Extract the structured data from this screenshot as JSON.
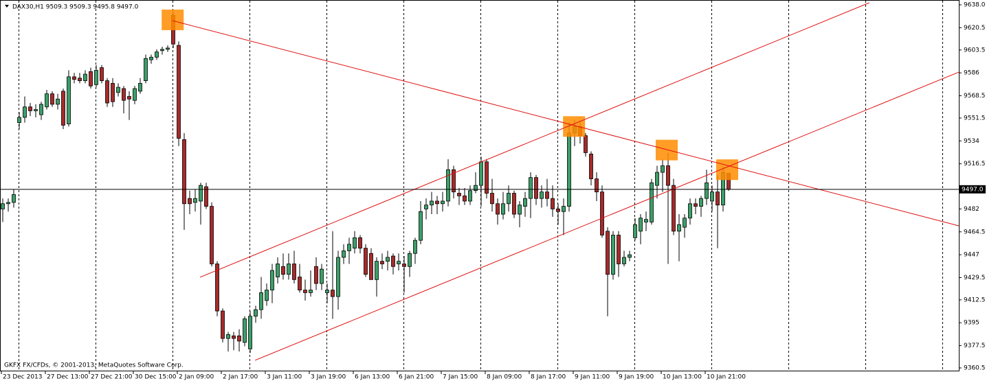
{
  "chart_data": {
    "type": "candlestick",
    "title": "DAX30,H1  9509.3 9509.3 9495.8 9497.0",
    "footer": "GKFX FX/CFDs, © 2001-2013, MetaQuotes Software Corp.",
    "up_color": "#3c9f68",
    "down_color": "#a82a2a",
    "line_color": "#e01010",
    "highlight_color": "#ff8c00",
    "open": [
      9482,
      9486,
      9487,
      9548,
      9552,
      9560,
      9557,
      9554,
      9560,
      9570,
      9562,
      9572,
      9547,
      9583,
      9582,
      9580,
      9587,
      9577,
      9590,
      9580,
      9578,
      9571,
      9574,
      9568,
      9565,
      9572,
      9580,
      9596,
      9598,
      9603,
      9604,
      9630,
      9607,
      9535,
      9490,
      9487,
      9488,
      9499,
      9484,
      9440,
      9404,
      9383,
      9385,
      9385,
      9380,
      9375,
      9400,
      9405,
      9412,
      9420,
      9430,
      9438,
      9432,
      9440,
      9430,
      9420,
      9418,
      9438,
      9425,
      9418,
      9420,
      9415,
      9445,
      9450,
      9452,
      9460,
      9452,
      9448,
      9428,
      9442,
      9442,
      9446,
      9440,
      9440,
      9438,
      9448,
      9458,
      9482,
      9485,
      9488,
      9486,
      9488,
      9512,
      9494,
      9492,
      9488,
      9496,
      9500,
      9518,
      9494,
      9486,
      9478,
      9486,
      9494,
      9478,
      9484,
      9490,
      9506,
      9490,
      9495,
      9490,
      9482,
      9480,
      9484,
      9540,
      9545,
      9538,
      9524,
      9505,
      9495,
      9465,
      9432,
      9462,
      9440,
      9445,
      9460,
      9465,
      9472,
      9472,
      9500,
      9510,
      9515,
      9500,
      9465,
      9468,
      9475,
      9486,
      9484,
      9490,
      9488,
      9495,
      9485,
      9509.3
    ],
    "high": [
      9490,
      9490,
      9497,
      9556,
      9568,
      9563,
      9562,
      9564,
      9573,
      9572,
      9570,
      9574,
      9588,
      9586,
      9586,
      9588,
      9590,
      9592,
      9592,
      9582,
      9582,
      9578,
      9576,
      9572,
      9576,
      9582,
      9600,
      9600,
      9604,
      9606,
      9607,
      9633,
      9610,
      9540,
      9496,
      9497,
      9502,
      9502,
      9487,
      9442,
      9406,
      9388,
      9388,
      9390,
      9400,
      9404,
      9408,
      9430,
      9425,
      9440,
      9445,
      9448,
      9448,
      9450,
      9440,
      9428,
      9435,
      9445,
      9440,
      9425,
      9465,
      9450,
      9455,
      9460,
      9465,
      9462,
      9455,
      9452,
      9445,
      9448,
      9450,
      9448,
      9448,
      9446,
      9450,
      9460,
      9488,
      9490,
      9495,
      9492,
      9495,
      9520,
      9515,
      9498,
      9498,
      9500,
      9510,
      9522,
      9520,
      9505,
      9490,
      9495,
      9500,
      9496,
      9488,
      9495,
      9510,
      9508,
      9500,
      9505,
      9500,
      9486,
      9490,
      9548,
      9550,
      9548,
      9540,
      9526,
      9510,
      9500,
      9468,
      9465,
      9465,
      9450,
      9450,
      9475,
      9478,
      9480,
      9505,
      9515,
      9520,
      9525,
      9505,
      9478,
      9478,
      9490,
      9490,
      9492,
      9512,
      9500,
      9508,
      9514,
      9509.3
    ],
    "low": [
      9472,
      9480,
      9483,
      9543,
      9548,
      9553,
      9552,
      9550,
      9558,
      9560,
      9558,
      9543,
      9545,
      9578,
      9578,
      9578,
      9574,
      9575,
      9578,
      9560,
      9560,
      9568,
      9555,
      9550,
      9562,
      9570,
      9578,
      9593,
      9596,
      9600,
      9602,
      9605,
      9530,
      9466,
      9478,
      9480,
      9470,
      9482,
      9438,
      9400,
      9380,
      9373,
      9374,
      9373,
      9377,
      9372,
      9395,
      9398,
      9408,
      9410,
      9425,
      9428,
      9428,
      9425,
      9418,
      9412,
      9415,
      9420,
      9420,
      9410,
      9398,
      9405,
      9440,
      9440,
      9448,
      9448,
      9430,
      9428,
      9415,
      9436,
      9435,
      9432,
      9435,
      9418,
      9430,
      9440,
      9455,
      9474,
      9478,
      9478,
      9480,
      9484,
      9490,
      9485,
      9485,
      9485,
      9494,
      9484,
      9490,
      9480,
      9470,
      9474,
      9480,
      9475,
      9468,
      9476,
      9475,
      9485,
      9483,
      9484,
      9476,
      9470,
      9462,
      9480,
      9530,
      9532,
      9522,
      9500,
      9488,
      9460,
      9400,
      9428,
      9430,
      9438,
      9442,
      9458,
      9455,
      9465,
      9470,
      9490,
      9495,
      9440,
      9462,
      9442,
      9460,
      9470,
      9478,
      9476,
      9485,
      9480,
      9452,
      9480,
      9495.8
    ],
    "close": [
      9486,
      9487,
      9493,
      9552,
      9560,
      9557,
      9558,
      9562,
      9570,
      9562,
      9566,
      9546,
      9583,
      9581,
      9580,
      9585,
      9576,
      9588,
      9580,
      9563,
      9564,
      9575,
      9565,
      9566,
      9574,
      9578,
      9597,
      9598,
      9602,
      9604,
      9605,
      9608,
      9536,
      9486,
      9486,
      9490,
      9500,
      9484,
      9440,
      9404,
      9383,
      9386,
      9383,
      9381,
      9398,
      9400,
      9405,
      9418,
      9420,
      9435,
      9440,
      9432,
      9440,
      9428,
      9420,
      9418,
      9420,
      9425,
      9436,
      9420,
      9415,
      9445,
      9450,
      9455,
      9460,
      9452,
      9432,
      9428,
      9442,
      9440,
      9445,
      9438,
      9442,
      9438,
      9448,
      9458,
      9480,
      9485,
      9488,
      9486,
      9488,
      9512,
      9495,
      9492,
      9488,
      9496,
      9500,
      9518,
      9494,
      9486,
      9478,
      9486,
      9494,
      9478,
      9485,
      9490,
      9506,
      9490,
      9495,
      9490,
      9482,
      9480,
      9484,
      9540,
      9545,
      9538,
      9525,
      9505,
      9495,
      9462,
      9432,
      9462,
      9440,
      9445,
      9447,
      9470,
      9475,
      9474,
      9502,
      9510,
      9515,
      9500,
      9465,
      9470,
      9475,
      9486,
      9484,
      9490,
      9502,
      9495,
      9485,
      9510,
      9497.0
    ],
    "xlim": [
      -0.5,
      173.875
    ],
    "ylim": [
      9358.4,
      9641.7
    ],
    "xticks": [
      {
        "value": 0,
        "label": "23 Dec 2013"
      },
      {
        "value": 8,
        "label": "27 Dec 13:00"
      },
      {
        "value": 16,
        "label": "27 Dec 21:00"
      },
      {
        "value": 24,
        "label": "30 Dec 15:00"
      },
      {
        "value": 32,
        "label": "2 Jan 09:00"
      },
      {
        "value": 40,
        "label": "2 Jan 17:00"
      },
      {
        "value": 48,
        "label": "3 Jan 11:00"
      },
      {
        "value": 56,
        "label": "3 Jan 19:00"
      },
      {
        "value": 64,
        "label": "6 Jan 13:00"
      },
      {
        "value": 72,
        "label": "6 Jan 21:00"
      },
      {
        "value": 80,
        "label": "7 Jan 15:00"
      },
      {
        "value": 88,
        "label": "8 Jan 09:00"
      },
      {
        "value": 96,
        "label": "8 Jan 17:00"
      },
      {
        "value": 104,
        "label": "9 Jan 11:00"
      },
      {
        "value": 112,
        "label": "9 Jan 19:00"
      },
      {
        "value": 120,
        "label": "10 Jan 13:00"
      },
      {
        "value": 128,
        "label": "10 Jan 21:00"
      }
    ],
    "yticks": [
      {
        "value": 9638,
        "label": "9638.0"
      },
      9620.5,
      9603.5,
      9586,
      9568.5,
      9551.5,
      9534,
      9516.5,
      9482,
      9464.5,
      9447,
      9429.5,
      9412.5,
      9395,
      9377.5,
      9360.5
    ],
    "last_price": {
      "value": 9497,
      "label": "9497.0"
    },
    "trendlines": [
      {
        "x": [
          30.875,
          173.875
        ],
        "y": [
          9625.9,
          9469.1
        ]
      },
      {
        "x": [
          35.875,
          157.6
        ],
        "y": [
          9429.8,
          9639.6
        ]
      },
      {
        "x": [
          45.875,
          173.875
        ],
        "y": [
          9366.3,
          9586.6
        ]
      }
    ],
    "highlights": {
      "x": [
        30.9,
        103.9,
        120.75,
        131.75
      ],
      "y": [
        9626.5,
        9545,
        9527,
        9512
      ]
    }
  }
}
